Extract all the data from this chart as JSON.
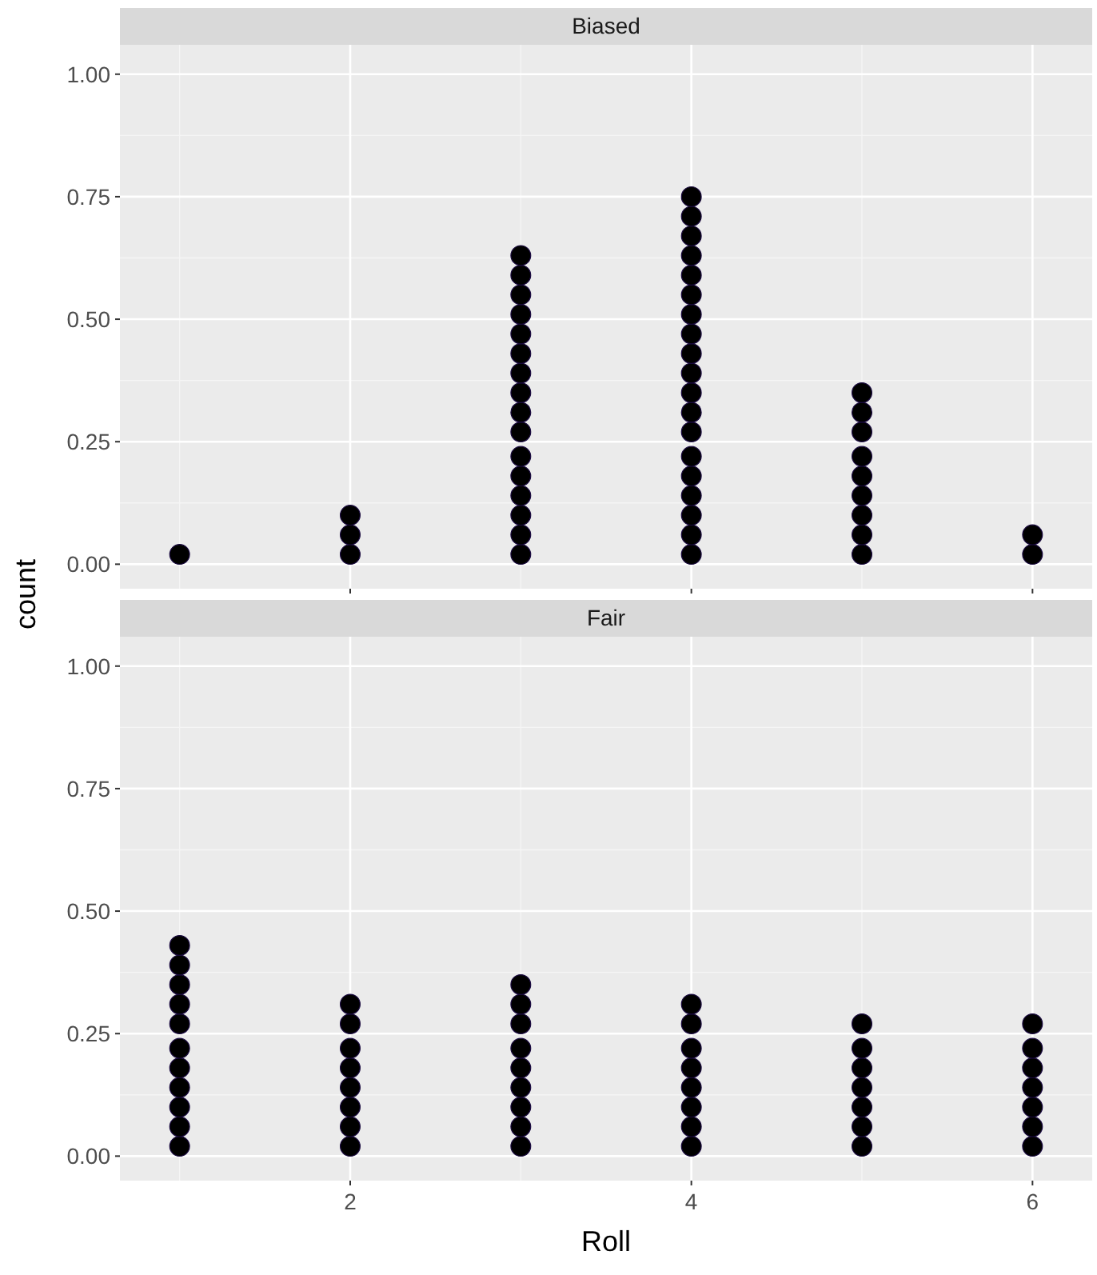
{
  "chart_data": [
    {
      "type": "scatter",
      "title": "Biased",
      "ylabel": "count",
      "xlim": [
        0.65,
        6.35
      ],
      "ylim": [
        -0.05,
        1.06
      ],
      "xticks": [
        2,
        4,
        6
      ],
      "yticks": [
        {
          "value": 0,
          "label": "0.00"
        },
        {
          "value": 0.25,
          "label": "0.25"
        },
        {
          "value": 0.5,
          "label": "0.50"
        },
        {
          "value": 0.75,
          "label": "0.75"
        },
        {
          "value": 1,
          "label": "1.00"
        }
      ],
      "grid": true,
      "marker": "circle",
      "tick_labels": "y",
      "series": [
        {
          "color": "#000000",
          "x": [
            1,
            2,
            2,
            2,
            3,
            3,
            3,
            3,
            3,
            3,
            3,
            3,
            3,
            3,
            3,
            3,
            3,
            3,
            3,
            3,
            4,
            4,
            4,
            4,
            4,
            4,
            4,
            4,
            4,
            4,
            4,
            4,
            4,
            4,
            4,
            4,
            4,
            4,
            4,
            5,
            5,
            5,
            5,
            5,
            5,
            5,
            5,
            5,
            6,
            6
          ],
          "values": [
            0.02,
            0.02,
            0.06,
            0.1,
            0.02,
            0.06,
            0.1,
            0.14,
            0.18,
            0.22,
            0.27,
            0.31,
            0.35,
            0.39,
            0.43,
            0.47,
            0.51,
            0.55,
            0.59,
            0.63,
            0.02,
            0.06,
            0.1,
            0.14,
            0.18,
            0.22,
            0.27,
            0.31,
            0.35,
            0.39,
            0.43,
            0.47,
            0.51,
            0.55,
            0.59,
            0.63,
            0.67,
            0.71,
            0.75,
            0.02,
            0.06,
            0.1,
            0.14,
            0.18,
            0.22,
            0.27,
            0.31,
            0.35,
            0.02,
            0.06
          ]
        }
      ]
    },
    {
      "type": "scatter",
      "title": "Fair",
      "xlabel": "Roll",
      "xlim": [
        0.65,
        6.35
      ],
      "ylim": [
        -0.05,
        1.06
      ],
      "xticks": [
        2,
        4,
        6
      ],
      "yticks": [
        {
          "value": 0,
          "label": "0.00"
        },
        {
          "value": 0.25,
          "label": "0.25"
        },
        {
          "value": 0.5,
          "label": "0.50"
        },
        {
          "value": 0.75,
          "label": "0.75"
        },
        {
          "value": 1,
          "label": "1.00"
        }
      ],
      "grid": true,
      "marker": "circle",
      "series": [
        {
          "color": "#000000",
          "x": [
            1,
            1,
            1,
            1,
            1,
            1,
            1,
            1,
            1,
            1,
            1,
            2,
            2,
            2,
            2,
            2,
            2,
            2,
            2,
            3,
            3,
            3,
            3,
            3,
            3,
            3,
            3,
            3,
            4,
            4,
            4,
            4,
            4,
            4,
            4,
            4,
            5,
            5,
            5,
            5,
            5,
            5,
            5,
            6,
            6,
            6,
            6,
            6,
            6,
            6
          ],
          "values": [
            0.02,
            0.06,
            0.1,
            0.14,
            0.18,
            0.22,
            0.27,
            0.31,
            0.35,
            0.39,
            0.43,
            0.02,
            0.06,
            0.1,
            0.14,
            0.18,
            0.22,
            0.27,
            0.31,
            0.02,
            0.06,
            0.1,
            0.14,
            0.18,
            0.22,
            0.27,
            0.31,
            0.35,
            0.02,
            0.06,
            0.1,
            0.14,
            0.18,
            0.22,
            0.27,
            0.31,
            0.02,
            0.06,
            0.1,
            0.14,
            0.18,
            0.22,
            0.27,
            0.02,
            0.06,
            0.1,
            0.14,
            0.18,
            0.22,
            0.27
          ]
        }
      ]
    }
  ]
}
